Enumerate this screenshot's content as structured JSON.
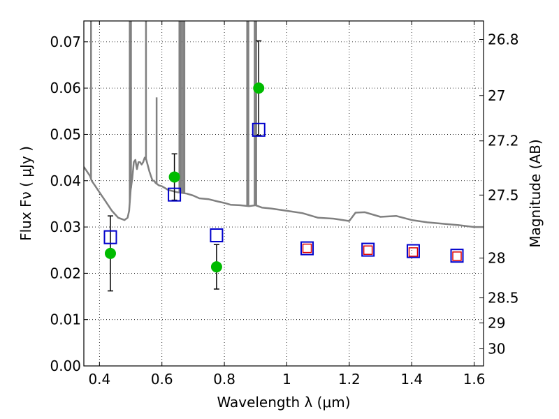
{
  "chart_data": {
    "type": "scatter",
    "title": "",
    "xlabel": "Wavelength  λ (μm)",
    "ylabel": "Flux  Fν  ( μJy )",
    "y2label": "Magnitude (AB)",
    "xlim": [
      0.35,
      1.63
    ],
    "ylim": [
      0.0,
      0.0745
    ],
    "grid": true,
    "x_ticks": [
      0.4,
      0.6,
      0.8,
      1.0,
      1.2,
      1.4,
      1.6
    ],
    "x_tick_labels": [
      "0.4",
      "0.6",
      "0.8",
      "1",
      "1.2",
      "1.4",
      "1.6"
    ],
    "y_ticks": [
      0.0,
      0.01,
      0.02,
      0.03,
      0.04,
      0.05,
      0.06,
      0.07
    ],
    "y_tick_labels": [
      "0.00",
      "0.01",
      "0.02",
      "0.03",
      "0.04",
      "0.05",
      "0.06",
      "0.07"
    ],
    "y2_ticks": [
      {
        "label": "26.8",
        "flux": 0.0705
      },
      {
        "label": "27",
        "flux": 0.0584
      },
      {
        "label": "27.2",
        "flux": 0.0486
      },
      {
        "label": "27.5",
        "flux": 0.0369
      },
      {
        "label": "28",
        "flux": 0.0233
      },
      {
        "label": "28.5",
        "flux": 0.0147
      },
      {
        "label": "29",
        "flux": 0.0093
      },
      {
        "label": "30",
        "flux": 0.0037
      }
    ],
    "series": [
      {
        "kind": "line",
        "color": "#808080",
        "x": [
          0.35,
          0.37,
          0.375,
          0.38,
          0.39,
          0.4,
          0.42,
          0.44,
          0.46,
          0.48,
          0.49,
          0.495,
          0.5,
          0.505,
          0.51,
          0.515,
          0.52,
          0.525,
          0.53,
          0.535,
          0.54,
          0.545,
          0.55,
          0.56,
          0.57,
          0.575,
          0.58,
          0.59,
          0.6,
          0.62,
          0.65,
          0.68,
          0.7,
          0.72,
          0.75,
          0.78,
          0.8,
          0.82,
          0.85,
          0.88,
          0.9,
          0.92,
          0.95,
          1.0,
          1.05,
          1.1,
          1.15,
          1.2,
          1.22,
          1.25,
          1.3,
          1.35,
          1.4,
          1.45,
          1.5,
          1.55,
          1.6,
          1.63
        ],
        "y": [
          0.043,
          0.041,
          0.04,
          0.0395,
          0.0385,
          0.0375,
          0.0355,
          0.0335,
          0.032,
          0.0315,
          0.032,
          0.0335,
          0.038,
          0.0405,
          0.044,
          0.0445,
          0.0425,
          0.044,
          0.044,
          0.0435,
          0.044,
          0.045,
          0.0445,
          0.042,
          0.04,
          0.04,
          0.0395,
          0.039,
          0.0388,
          0.038,
          0.0375,
          0.0372,
          0.0368,
          0.0362,
          0.036,
          0.0355,
          0.0352,
          0.0348,
          0.0347,
          0.0345,
          0.0347,
          0.0342,
          0.034,
          0.0335,
          0.033,
          0.032,
          0.0318,
          0.0313,
          0.0331,
          0.0332,
          0.0322,
          0.0324,
          0.0315,
          0.031,
          0.0307,
          0.0304,
          0.03,
          0.03
        ]
      },
      {
        "kind": "emission_lines",
        "color": "#808080",
        "lines": [
          {
            "x": 0.373,
            "y": 0.0745
          },
          {
            "x": 0.497,
            "y": 0.0745
          },
          {
            "x": 0.501,
            "y": 0.0745
          },
          {
            "x": 0.549,
            "y": 0.0745
          },
          {
            "x": 0.583,
            "y": 0.058
          },
          {
            "x": 0.656,
            "y": 0.0745
          },
          {
            "x": 0.661,
            "y": 0.0745
          },
          {
            "x": 0.667,
            "y": 0.0745
          },
          {
            "x": 0.672,
            "y": 0.0745
          },
          {
            "x": 0.873,
            "y": 0.0745
          },
          {
            "x": 0.877,
            "y": 0.0745
          },
          {
            "x": 0.897,
            "y": 0.0745
          },
          {
            "x": 0.902,
            "y": 0.0745
          }
        ]
      },
      {
        "kind": "points",
        "marker": "circle",
        "color": "#00bb00",
        "x": [
          0.435,
          0.64,
          0.775,
          0.91
        ],
        "y": [
          0.0243,
          0.0408,
          0.0214,
          0.06
        ],
        "yerr": [
          0.0081,
          0.005,
          0.0048,
          0.0102
        ]
      },
      {
        "kind": "points",
        "marker": "square-open",
        "color": "#0000cc",
        "x": [
          0.435,
          0.64,
          0.775,
          0.91,
          1.065,
          1.26,
          1.405,
          1.545
        ],
        "y": [
          0.0278,
          0.037,
          0.0282,
          0.051,
          0.0254,
          0.0251,
          0.0248,
          0.0238
        ]
      },
      {
        "kind": "points",
        "marker": "square-open-small",
        "color": "#dd0000",
        "x": [
          1.065,
          1.26,
          1.405,
          1.545
        ],
        "y": [
          0.0254,
          0.025,
          0.0246,
          0.0237
        ]
      }
    ]
  }
}
